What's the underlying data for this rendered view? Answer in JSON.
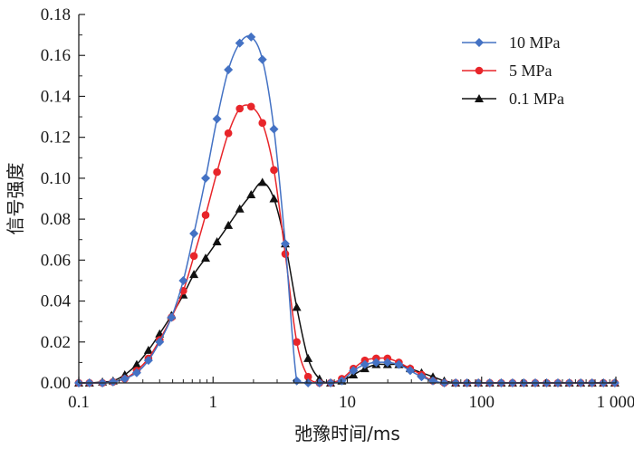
{
  "chart_data": {
    "type": "line",
    "title": "",
    "xlabel": "弛豫时间/ms",
    "ylabel": "信号强度",
    "xscale": "log",
    "xlim": [
      0.1,
      1000
    ],
    "ylim": [
      0,
      0.18
    ],
    "x_ticks": [
      {
        "value": 0.1,
        "label": "0.1"
      },
      {
        "value": 1,
        "label": "1"
      },
      {
        "value": 10,
        "label": "10"
      },
      {
        "value": 100,
        "label": "100"
      },
      {
        "value": 1000,
        "label": "1 000"
      }
    ],
    "y_ticks": [
      {
        "value": 0.0,
        "label": "0.00"
      },
      {
        "value": 0.02,
        "label": "0.02"
      },
      {
        "value": 0.04,
        "label": "0.04"
      },
      {
        "value": 0.06,
        "label": "0.06"
      },
      {
        "value": 0.08,
        "label": "0.08"
      },
      {
        "value": 0.1,
        "label": "0.10"
      },
      {
        "value": 0.12,
        "label": "0.12"
      },
      {
        "value": 0.14,
        "label": "0.14"
      },
      {
        "value": 0.16,
        "label": "0.16"
      },
      {
        "value": 0.18,
        "label": "0.18"
      }
    ],
    "grid": false,
    "legend_position": "top-right",
    "series": [
      {
        "name": "10 MPa",
        "color": "#4472c4",
        "marker": "diamond",
        "x": [
          0.1,
          0.12,
          0.15,
          0.18,
          0.22,
          0.27,
          0.33,
          0.4,
          0.49,
          0.6,
          0.72,
          0.88,
          1.07,
          1.3,
          1.58,
          1.92,
          2.33,
          2.84,
          3.45,
          4.2,
          5.1,
          6.2,
          7.5,
          9.1,
          11.1,
          13.5,
          16.4,
          19.9,
          24.2,
          29.4,
          35.7,
          43.4,
          52.7,
          64.1,
          77.9,
          94.6,
          115,
          140,
          170,
          206,
          251,
          305,
          370,
          450,
          547,
          665,
          808,
          982
        ],
        "y": [
          0,
          0,
          0,
          0.0005,
          0.002,
          0.005,
          0.011,
          0.02,
          0.032,
          0.05,
          0.073,
          0.1,
          0.129,
          0.153,
          0.166,
          0.169,
          0.158,
          0.124,
          0.068,
          0.001,
          0,
          0,
          0,
          0.001,
          0.006,
          0.009,
          0.01,
          0.01,
          0.009,
          0.006,
          0.003,
          0.001,
          0,
          0,
          0,
          0,
          0,
          0,
          0,
          0,
          0,
          0,
          0,
          0,
          0,
          0,
          0,
          0
        ]
      },
      {
        "name": "5 MPa",
        "color": "#e8252a",
        "marker": "circle",
        "x": [
          0.1,
          0.12,
          0.15,
          0.18,
          0.22,
          0.27,
          0.33,
          0.4,
          0.49,
          0.6,
          0.72,
          0.88,
          1.07,
          1.3,
          1.58,
          1.92,
          2.33,
          2.84,
          3.45,
          4.2,
          5.1,
          6.2,
          7.5,
          9.1,
          11.1,
          13.5,
          16.4,
          19.9,
          24.2,
          29.4,
          35.7,
          43.4,
          52.7,
          64.1,
          77.9,
          94.6,
          115,
          140,
          170,
          206,
          251,
          305,
          370,
          450,
          547,
          665,
          808,
          982
        ],
        "y": [
          0,
          0,
          0,
          0.0005,
          0.002,
          0.006,
          0.012,
          0.021,
          0.032,
          0.045,
          0.062,
          0.082,
          0.103,
          0.122,
          0.134,
          0.135,
          0.127,
          0.104,
          0.063,
          0.02,
          0.003,
          0,
          0,
          0.002,
          0.007,
          0.011,
          0.012,
          0.012,
          0.01,
          0.007,
          0.004,
          0.001,
          0,
          0,
          0,
          0,
          0,
          0,
          0,
          0,
          0,
          0,
          0,
          0,
          0,
          0,
          0,
          0
        ]
      },
      {
        "name": "0.1 MPa",
        "color": "#111111",
        "marker": "triangle",
        "x": [
          0.1,
          0.12,
          0.15,
          0.18,
          0.22,
          0.27,
          0.33,
          0.4,
          0.49,
          0.6,
          0.72,
          0.88,
          1.07,
          1.3,
          1.58,
          1.92,
          2.33,
          2.84,
          3.45,
          4.2,
          5.1,
          6.2,
          7.5,
          9.1,
          11.1,
          13.5,
          16.4,
          19.9,
          24.2,
          29.4,
          35.7,
          43.4,
          52.7,
          64.1,
          77.9,
          94.6,
          115,
          140,
          170,
          206,
          251,
          305,
          370,
          450,
          547,
          665,
          808,
          982
        ],
        "y": [
          0,
          0,
          0.0005,
          0.001,
          0.004,
          0.009,
          0.016,
          0.024,
          0.033,
          0.043,
          0.053,
          0.061,
          0.069,
          0.077,
          0.085,
          0.092,
          0.098,
          0.09,
          0.068,
          0.037,
          0.012,
          0.002,
          0,
          0.001,
          0.004,
          0.007,
          0.009,
          0.009,
          0.009,
          0.007,
          0.005,
          0.003,
          0.001,
          0,
          0,
          0,
          0,
          0,
          0,
          0,
          0,
          0,
          0,
          0,
          0,
          0,
          0,
          0
        ]
      }
    ]
  }
}
